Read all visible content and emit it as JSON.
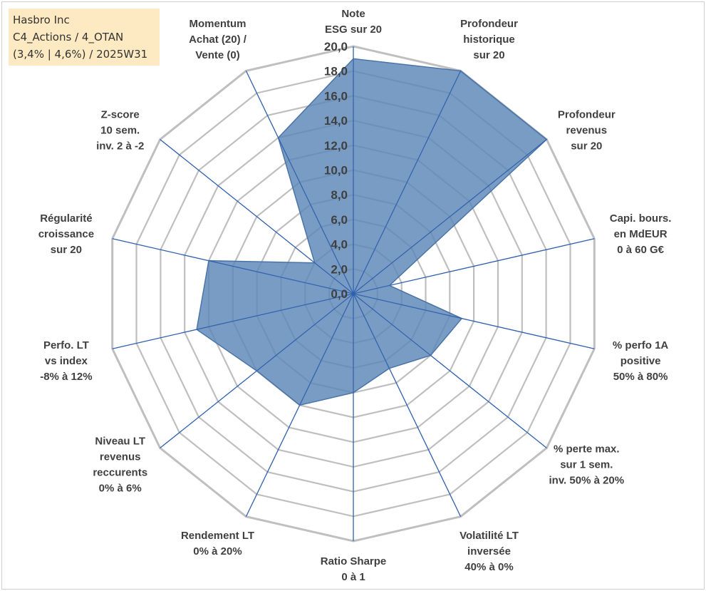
{
  "header": {
    "lines": [
      "Hasbro Inc",
      "C4_Actions / 4_OTAN",
      "(3,4% | 4,6%) / 2025W31"
    ]
  },
  "colors": {
    "fill": "#5b86b7",
    "fill_stroke": "#4a74a8",
    "spoke": "#2f5fae",
    "grid": "#bfbfbf",
    "legend_bg": "#fde9c2"
  },
  "chart_data": {
    "type": "radar",
    "title": "",
    "rmin": 0,
    "rmax": 20,
    "tick_step": 2,
    "tick_labels": [
      "0,0",
      "2,0",
      "4,0",
      "6,0",
      "8,0",
      "10,0",
      "12,0",
      "14,0",
      "16,0",
      "18,0",
      "20,0"
    ],
    "axes": [
      {
        "label": [
          "Note",
          "ESG sur 20"
        ],
        "value": 19.0
      },
      {
        "label": [
          "Profondeur",
          "historique",
          "sur 20"
        ],
        "value": 20.0
      },
      {
        "label": [
          "Profondeur",
          "revenus",
          "sur 20"
        ],
        "value": 20.0
      },
      {
        "label": [
          "Capi. bours.",
          "en MdEUR",
          "0 à 60 G€"
        ],
        "value": 3.0
      },
      {
        "label": [
          "% perfo 1A",
          "positive",
          "50% à 80%"
        ],
        "value": 9.0
      },
      {
        "label": [
          "% perte max.",
          "sur 1 sem.",
          "inv. 50% à 20%"
        ],
        "value": 8.0
      },
      {
        "label": [
          "Volatilité LT",
          "inversée",
          "40% à 0%"
        ],
        "value": 6.7
      },
      {
        "label": [
          "Ratio Sharpe",
          "0 à 1"
        ],
        "value": 8.0
      },
      {
        "label": [
          "Rendement LT",
          "0% à 20%"
        ],
        "value": 10.0
      },
      {
        "label": [
          "Niveau LT",
          "revenus",
          "reccurents",
          "0% à 6%"
        ],
        "value": 10.0
      },
      {
        "label": [
          "Perfo. LT",
          "vs index",
          "-8% à 12%"
        ],
        "value": 13.0
      },
      {
        "label": [
          "Régularité",
          "croissance",
          "sur 20"
        ],
        "value": 12.0
      },
      {
        "label": [
          "Z-score",
          "10 sem.",
          "inv. 2 à -2"
        ],
        "value": 4.0
      },
      {
        "label": [
          "Momentum",
          "Achat (20) /",
          "Vente (0)"
        ],
        "value": 14.0
      }
    ]
  }
}
